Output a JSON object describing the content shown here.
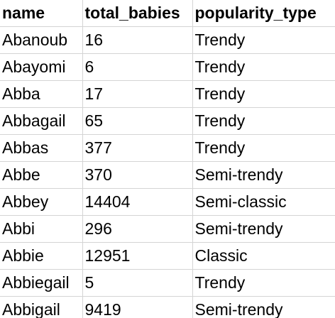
{
  "table": {
    "headers": [
      "name",
      "total_babies",
      "popularity_type"
    ],
    "rows": [
      [
        "Abanoub",
        "16",
        "Trendy"
      ],
      [
        "Abayomi",
        "6",
        "Trendy"
      ],
      [
        "Abba",
        "17",
        "Trendy"
      ],
      [
        "Abbagail",
        "65",
        "Trendy"
      ],
      [
        "Abbas",
        "377",
        "Trendy"
      ],
      [
        "Abbe",
        "370",
        "Semi-trendy"
      ],
      [
        "Abbey",
        "14404",
        "Semi-classic"
      ],
      [
        "Abbi",
        "296",
        "Semi-trendy"
      ],
      [
        "Abbie",
        "12951",
        "Classic"
      ],
      [
        "Abbiegail",
        "5",
        "Trendy"
      ],
      [
        "Abbigail",
        "9419",
        "Semi-trendy"
      ]
    ]
  }
}
